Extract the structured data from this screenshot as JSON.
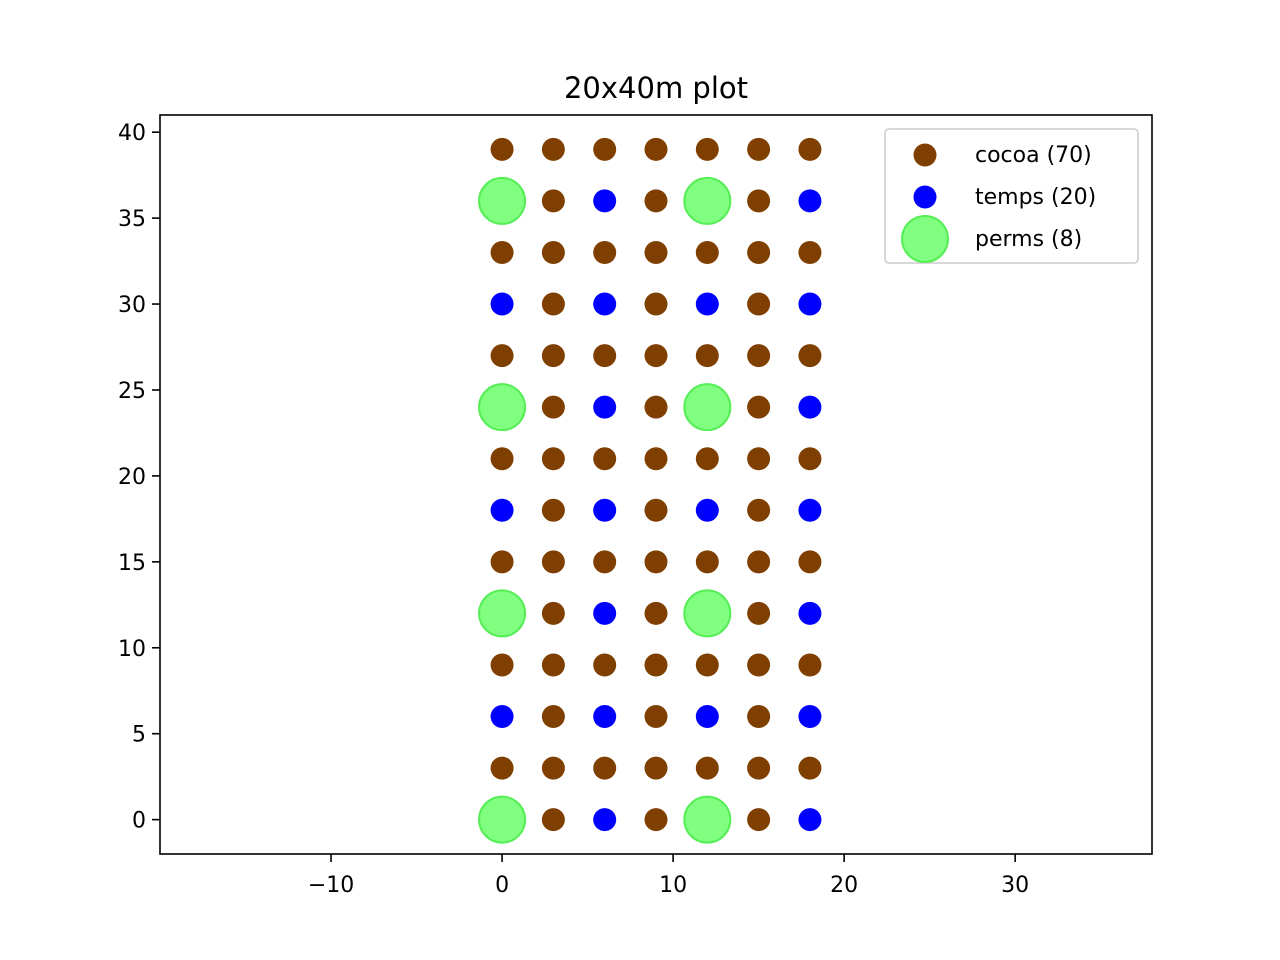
{
  "chart_data": {
    "type": "scatter",
    "title": "20x40m plot",
    "xlabel": "",
    "ylabel": "",
    "xlim": [
      -20,
      38
    ],
    "ylim": [
      -2,
      41
    ],
    "x_ticks": [
      -10,
      0,
      10,
      20,
      30
    ],
    "x_tick_labels": [
      "−10",
      "0",
      "10",
      "20",
      "30"
    ],
    "y_ticks": [
      0,
      5,
      10,
      15,
      20,
      25,
      30,
      35,
      40
    ],
    "y_tick_labels": [
      "0",
      "5",
      "10",
      "15",
      "20",
      "25",
      "30",
      "35",
      "40"
    ],
    "grid": false,
    "legend_position": "top-right",
    "series": [
      {
        "name": "cocoa (70)",
        "color": "#7f3f00",
        "marker": "small-circle",
        "points": [
          [
            3,
            0
          ],
          [
            9,
            0
          ],
          [
            15,
            0
          ],
          [
            0,
            3
          ],
          [
            3,
            3
          ],
          [
            6,
            3
          ],
          [
            9,
            3
          ],
          [
            12,
            3
          ],
          [
            15,
            3
          ],
          [
            18,
            3
          ],
          [
            3,
            6
          ],
          [
            9,
            6
          ],
          [
            15,
            6
          ],
          [
            0,
            9
          ],
          [
            3,
            9
          ],
          [
            6,
            9
          ],
          [
            9,
            9
          ],
          [
            12,
            9
          ],
          [
            15,
            9
          ],
          [
            18,
            9
          ],
          [
            3,
            12
          ],
          [
            9,
            12
          ],
          [
            15,
            12
          ],
          [
            0,
            15
          ],
          [
            3,
            15
          ],
          [
            6,
            15
          ],
          [
            9,
            15
          ],
          [
            12,
            15
          ],
          [
            15,
            15
          ],
          [
            18,
            15
          ],
          [
            3,
            18
          ],
          [
            9,
            18
          ],
          [
            15,
            18
          ],
          [
            0,
            21
          ],
          [
            3,
            21
          ],
          [
            6,
            21
          ],
          [
            9,
            21
          ],
          [
            12,
            21
          ],
          [
            15,
            21
          ],
          [
            18,
            21
          ],
          [
            3,
            24
          ],
          [
            9,
            24
          ],
          [
            15,
            24
          ],
          [
            0,
            27
          ],
          [
            3,
            27
          ],
          [
            6,
            27
          ],
          [
            9,
            27
          ],
          [
            12,
            27
          ],
          [
            15,
            27
          ],
          [
            18,
            27
          ],
          [
            3,
            30
          ],
          [
            9,
            30
          ],
          [
            15,
            30
          ],
          [
            0,
            33
          ],
          [
            3,
            33
          ],
          [
            6,
            33
          ],
          [
            9,
            33
          ],
          [
            12,
            33
          ],
          [
            15,
            33
          ],
          [
            18,
            33
          ],
          [
            3,
            36
          ],
          [
            9,
            36
          ],
          [
            15,
            36
          ],
          [
            0,
            39
          ],
          [
            3,
            39
          ],
          [
            6,
            39
          ],
          [
            9,
            39
          ],
          [
            12,
            39
          ],
          [
            15,
            39
          ],
          [
            18,
            39
          ]
        ]
      },
      {
        "name": "temps (20)",
        "color": "#0000ff",
        "marker": "small-circle",
        "points": [
          [
            6,
            0
          ],
          [
            18,
            0
          ],
          [
            0,
            6
          ],
          [
            6,
            6
          ],
          [
            12,
            6
          ],
          [
            18,
            6
          ],
          [
            6,
            12
          ],
          [
            18,
            12
          ],
          [
            0,
            18
          ],
          [
            6,
            18
          ],
          [
            12,
            18
          ],
          [
            18,
            18
          ],
          [
            6,
            24
          ],
          [
            18,
            24
          ],
          [
            0,
            30
          ],
          [
            6,
            30
          ],
          [
            12,
            30
          ],
          [
            18,
            30
          ],
          [
            6,
            36
          ],
          [
            18,
            36
          ]
        ]
      },
      {
        "name": "perms (8)",
        "color": "#80ff80",
        "edge_color": "#55ee55",
        "marker": "large-circle",
        "points": [
          [
            0,
            0
          ],
          [
            12,
            0
          ],
          [
            0,
            12
          ],
          [
            12,
            12
          ],
          [
            0,
            24
          ],
          [
            12,
            24
          ],
          [
            0,
            36
          ],
          [
            12,
            36
          ]
        ]
      }
    ]
  }
}
